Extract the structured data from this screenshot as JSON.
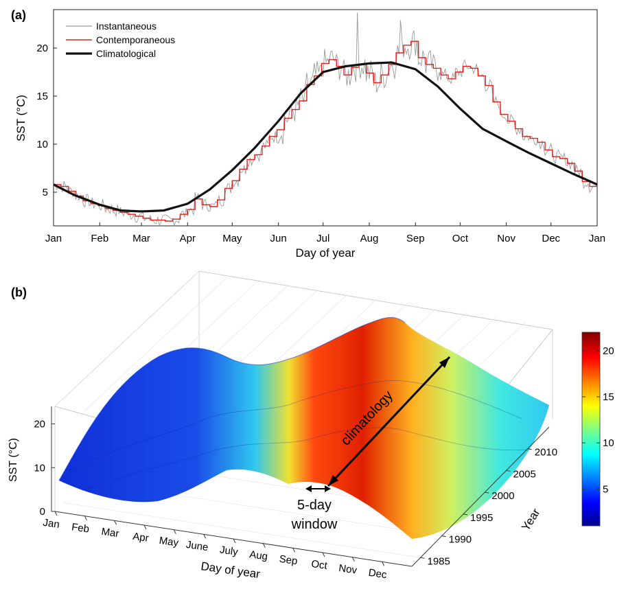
{
  "panel_a": {
    "label": "(a)",
    "legend": [
      "Instantaneous",
      "Contemporaneous",
      "Climatological"
    ],
    "colors": {
      "instantaneous": "#9a9a9a",
      "contemporaneous": "#e0201b",
      "climatological": "#111111"
    }
  },
  "panel_b": {
    "label": "(b)",
    "annotations": {
      "climatology": "climatology",
      "window_line1": "5-day",
      "window_line2": "window"
    },
    "colorbar": {
      "ticks": [
        5,
        10,
        15,
        20
      ],
      "tick_labels": [
        "5",
        "10",
        "15",
        "20"
      ],
      "range": [
        1,
        22
      ],
      "colormap": "jet"
    }
  },
  "chart_data": [
    {
      "type": "line",
      "xlabel": "Day of year",
      "ylabel": "SST (°C)",
      "x_ticks": [
        "Jan",
        "Feb",
        "Mar",
        "Apr",
        "May",
        "Jun",
        "Jul",
        "Aug",
        "Sep",
        "Oct",
        "Nov",
        "Dec",
        "Jan"
      ],
      "x_tick_days": [
        1,
        32,
        60,
        91,
        121,
        152,
        182,
        213,
        244,
        274,
        305,
        335,
        366
      ],
      "y_ticks": [
        5,
        10,
        15,
        20
      ],
      "xlim": [
        1,
        366
      ],
      "ylim": [
        1.5,
        24
      ],
      "legend_position": "top-left",
      "series": [
        {
          "name": "Climatological",
          "x": [
            1,
            15,
            32,
            46,
            60,
            75,
            91,
            106,
            121,
            136,
            152,
            167,
            182,
            197,
            213,
            228,
            244,
            259,
            274,
            289,
            305,
            320,
            335,
            350,
            366
          ],
          "y": [
            5.8,
            4.7,
            3.7,
            3.1,
            3.0,
            3.1,
            3.8,
            5.3,
            7.3,
            9.6,
            12.4,
            15.3,
            17.5,
            18.1,
            18.4,
            18.5,
            17.8,
            16.0,
            13.7,
            11.6,
            10.3,
            9.1,
            8.0,
            6.9,
            5.8
          ]
        },
        {
          "name": "Contemporaneous",
          "x": [
            1,
            6,
            11,
            16,
            21,
            26,
            31,
            36,
            41,
            46,
            51,
            56,
            61,
            66,
            71,
            76,
            81,
            86,
            91,
            96,
            101,
            106,
            111,
            116,
            121,
            126,
            131,
            136,
            141,
            146,
            151,
            156,
            161,
            166,
            171,
            176,
            181,
            186,
            191,
            196,
            201,
            206,
            211,
            216,
            221,
            226,
            231,
            236,
            241,
            246,
            251,
            256,
            261,
            266,
            271,
            276,
            281,
            286,
            291,
            296,
            301,
            306,
            311,
            316,
            321,
            326,
            331,
            336,
            341,
            346,
            351,
            356,
            361,
            366
          ],
          "y": [
            5.8,
            5.6,
            5.1,
            4.6,
            4.1,
            3.8,
            3.6,
            3.3,
            3.1,
            2.9,
            2.7,
            2.5,
            2.3,
            2.1,
            2.1,
            2.0,
            2.2,
            2.7,
            3.2,
            4.3,
            3.7,
            3.5,
            4.2,
            5.4,
            6.2,
            7.4,
            8.4,
            8.9,
            9.8,
            10.8,
            11.5,
            12.7,
            13.6,
            14.5,
            16.2,
            17.1,
            18.4,
            18.8,
            18.1,
            17.2,
            18.0,
            18.3,
            17.4,
            16.4,
            17.2,
            18.3,
            19.5,
            20.3,
            20.7,
            19.0,
            18.3,
            17.9,
            17.2,
            16.8,
            17.5,
            18.1,
            17.9,
            17.1,
            16.1,
            14.4,
            13.1,
            12.4,
            11.6,
            10.8,
            10.6,
            10.2,
            9.4,
            8.7,
            8.5,
            8.0,
            7.2,
            6.1,
            5.6,
            5.2
          ]
        },
        {
          "name": "Instantaneous",
          "note": "daily values fluctuating around the contemporaneous series; peaks near 23.7 (early Aug) and 22.9 (late Aug)"
        }
      ]
    },
    {
      "type": "surface",
      "xlabel": "Day of year",
      "ylabel": "Year",
      "zlabel": "SST (°C)",
      "x_ticks": [
        "Jan",
        "Feb",
        "Mar",
        "Apr",
        "May",
        "June",
        "July",
        "Aug",
        "Sep",
        "Oct",
        "Nov",
        "Dec"
      ],
      "y_ticks": [
        1985,
        1990,
        1995,
        2000,
        2005,
        2010
      ],
      "z_ticks": [
        0,
        10,
        20
      ],
      "zlim": [
        0,
        24
      ]
    }
  ]
}
